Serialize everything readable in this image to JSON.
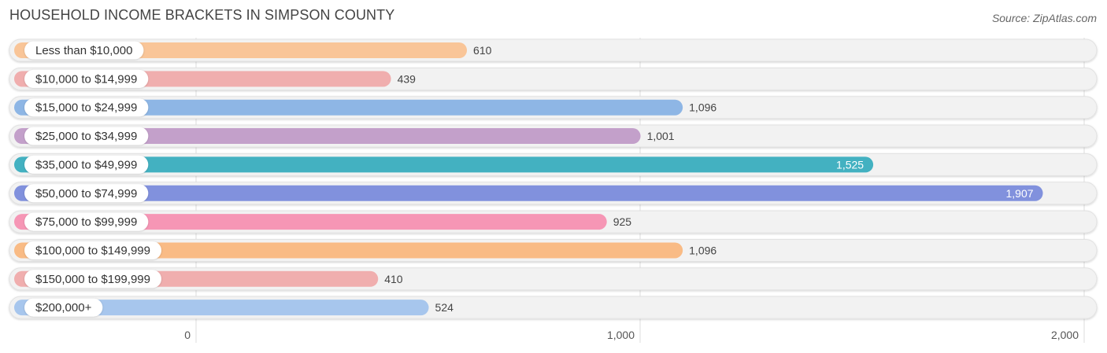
{
  "header": {
    "title": "HOUSEHOLD INCOME BRACKETS IN SIMPSON COUNTY",
    "source": "Source: ZipAtlas.com"
  },
  "chart_data": {
    "type": "bar",
    "orientation": "horizontal",
    "title": "HOUSEHOLD INCOME BRACKETS IN SIMPSON COUNTY",
    "categories": [
      "Less than $10,000",
      "$10,000 to $14,999",
      "$15,000 to $24,999",
      "$25,000 to $34,999",
      "$35,000 to $49,999",
      "$50,000 to $74,999",
      "$75,000 to $99,999",
      "$100,000 to $149,999",
      "$150,000 to $199,999",
      "$200,000+"
    ],
    "values": [
      610,
      439,
      1096,
      1001,
      1525,
      1907,
      925,
      1096,
      410,
      524
    ],
    "value_labels": [
      "610",
      "439",
      "1,096",
      "1,001",
      "1,525",
      "1,907",
      "925",
      "1,096",
      "410",
      "524"
    ],
    "colors": [
      "#f9c598",
      "#f0aeae",
      "#8eb6e5",
      "#c3a0ca",
      "#43b1c1",
      "#8191dd",
      "#f696b5",
      "#f9bb85",
      "#f0aeae",
      "#a7c6ed"
    ],
    "xlim": [
      0,
      2000
    ],
    "xticks": [
      0,
      1000,
      2000
    ],
    "xtick_labels": [
      "0",
      "1,000",
      "2,000"
    ],
    "grid": true,
    "legend": "none"
  }
}
